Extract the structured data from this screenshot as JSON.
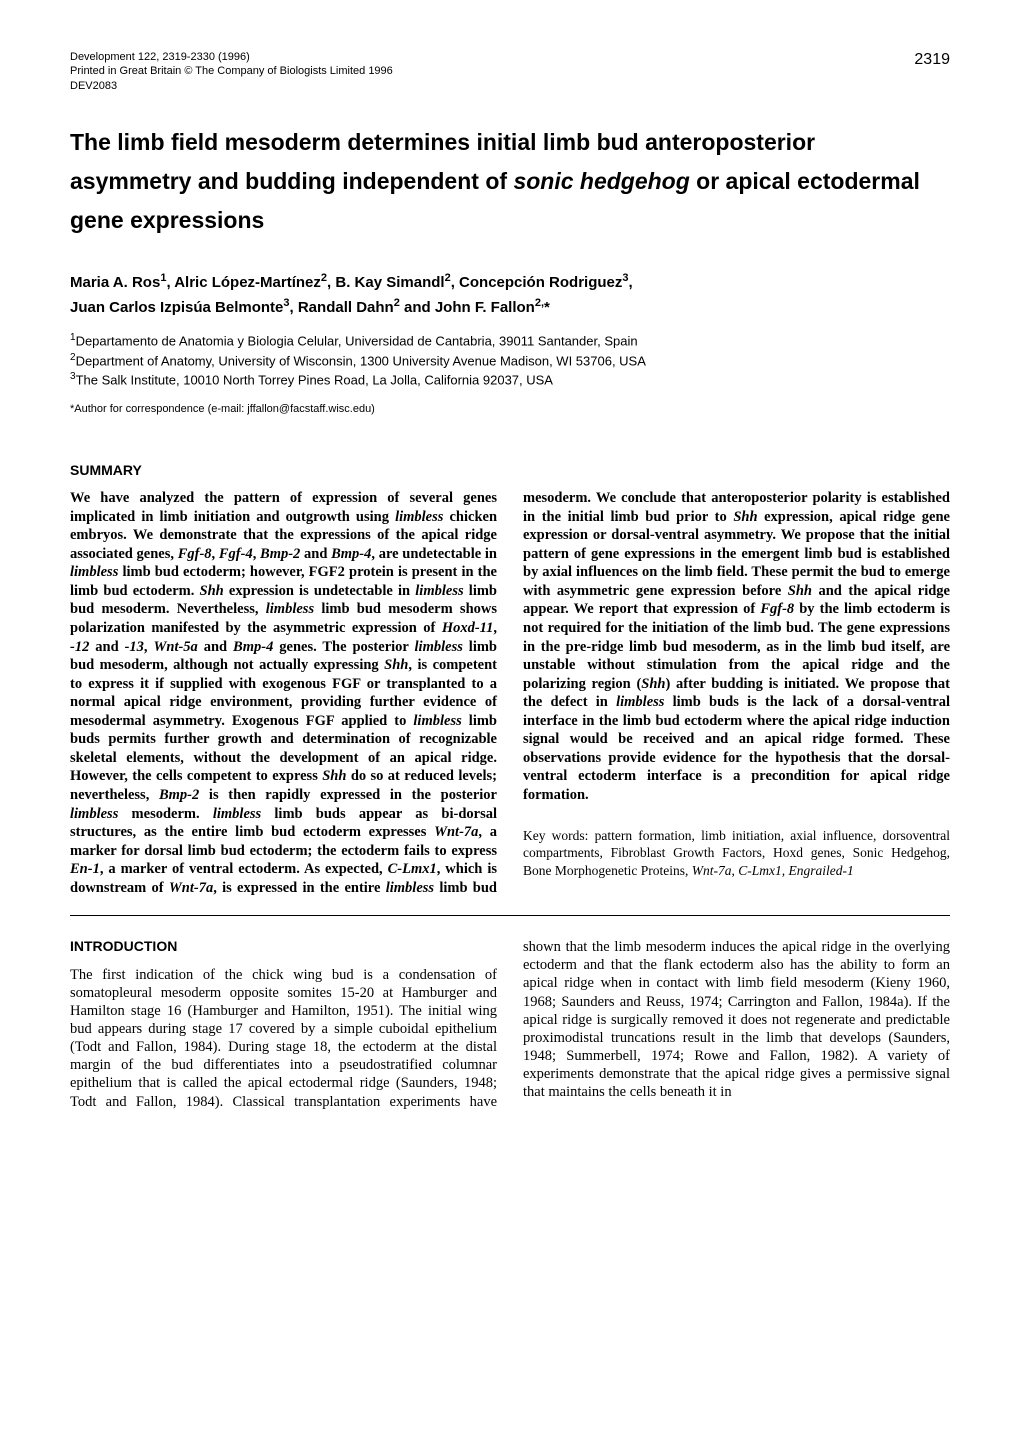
{
  "header": {
    "journal_line1": "Development 122, 2319-2330 (1996)",
    "journal_line2": "Printed in Great Britain © The Company of Biologists Limited 1996",
    "journal_line3": "DEV2083",
    "page_number": "2319"
  },
  "title": {
    "line1_part1": "The limb field mesoderm determines initial limb bud anteroposterior",
    "line2_part1": "asymmetry and budding independent of ",
    "line2_italic": "sonic hedgehog",
    "line2_part2": " or apical ectodermal",
    "line3": "gene expressions"
  },
  "authors": {
    "line1": "Maria A. Ros<sup>1</sup>, Alric López-Martínez<sup>2</sup>, B. Kay Simandl<sup>2</sup>, Concepción Rodriguez<sup>3</sup>,",
    "line2": "Juan Carlos Izpisúa Belmonte<sup>3</sup>, Randall Dahn<sup>2</sup> and John F. Fallon<sup>2,</sup>*"
  },
  "affiliations": {
    "a1": "<sup>1</sup>Departamento de Anatomia y Biologia Celular, Universidad de Cantabria, 39011 Santander, Spain",
    "a2": "<sup>2</sup>Department of Anatomy, University of Wisconsin, 1300 University Avenue Madison, WI 53706, USA",
    "a3": "<sup>3</sup>The Salk Institute, 10010 North Torrey Pines Road, La Jolla, California 92037, USA"
  },
  "correspondence": "*Author for correspondence (e-mail: jffallon@facstaff.wisc.edu)",
  "summary": {
    "header": "SUMMARY",
    "body_html": "We have analyzed the pattern of expression of several genes implicated in limb initiation and outgrowth using <span class=\"italic\">limbless</span> chicken embryos. We demonstrate that the expressions of the apical ridge associated genes, <span class=\"italic\">Fgf-8</span>, <span class=\"italic\">Fgf-4</span>, <span class=\"italic\">Bmp-2</span> and <span class=\"italic\">Bmp-4</span>, are undetectable in <span class=\"italic\">limbless</span> limb bud ectoderm; however, FGF2 protein is present in the limb bud ectoderm. <span class=\"italic\">Shh</span> expression is undetectable in <span class=\"italic\">limbless</span> limb bud mesoderm. Nevertheless, <span class=\"italic\">limbless</span> limb bud mesoderm shows polarization manifested by the asymmetric expression of <span class=\"italic\">Hoxd-11</span>, <span class=\"italic\">-12</span> and <span class=\"italic\">-13</span>, <span class=\"italic\">Wnt-5a</span> and <span class=\"italic\">Bmp-4</span> genes. The posterior <span class=\"italic\">limbless</span> limb bud mesoderm, although not actually expressing <span class=\"italic\">Shh</span>, is competent to express it if supplied with exogenous FGF or transplanted to a normal apical ridge environment, providing further evidence of mesodermal asymmetry. Exogenous FGF applied to <span class=\"italic\">limbless</span> limb buds permits further growth and determination of recognizable skeletal elements, without the development of an apical ridge. However, the cells competent to express <span class=\"italic\">Shh</span> do so at reduced levels; nevertheless, <span class=\"italic\">Bmp-2</span> is then rapidly expressed in the posterior <span class=\"italic\">limbless</span> mesoderm. <span class=\"italic\">limbless</span> limb buds appear as bi-dorsal structures, as the entire limb bud ectoderm expresses <span class=\"italic\">Wnt-7a</span>, a marker for dorsal limb bud ectoderm; the ectoderm fails to express <span class=\"italic\">En-1</span>, a marker of ventral ectoderm. As expected, <span class=\"italic\">C-Lmx1</span>, which is downstream of <span class=\"italic\">Wnt-7a</span>, is expressed in the entire <span class=\"italic\">limbless</span> limb bud mesoderm. We conclude that anteroposterior polarity is established in the initial limb bud prior to <span class=\"italic\">Shh</span> expression, apical ridge gene expression or dorsal-ventral asymmetry. We propose that the initial pattern of gene expressions in the emergent limb bud is established by axial influences on the limb field. These permit the bud to emerge with asymmetric gene expression before <span class=\"italic\">Shh</span> and the apical ridge appear. We report that expression of <span class=\"italic\">Fgf-8</span> by the limb ectoderm is not required for the initiation of the limb bud. The gene expressions in the pre-ridge limb bud mesoderm, as in the limb bud itself, are unstable without stimulation from the apical ridge and the polarizing region (<span class=\"italic\">Shh</span>) after budding is initiated. We propose that the defect in <span class=\"italic\">limbless</span> limb buds is the lack of a dorsal-ventral interface in the limb bud ectoderm where the apical ridge induction signal would be received and an apical ridge formed. These observations provide evidence for the hypothesis that the dorsal-ventral ectoderm interface is a precondition for apical ridge formation.",
    "keywords_html": "Key words: pattern formation, limb initiation, axial influence, dorsoventral compartments, Fibroblast Growth Factors, Hoxd genes, Sonic Hedgehog, Bone Morphogenetic Proteins, <span class=\"italic\">Wnt-7a</span>, <span class=\"italic\">C-Lmx1, Engrailed-1</span>"
  },
  "introduction": {
    "header": "INTRODUCTION",
    "body": "The first indication of the chick wing bud is a condensation of somatopleural mesoderm opposite somites 15-20 at Hamburger and Hamilton stage 16 (Hamburger and Hamilton, 1951). The initial wing bud appears during stage 17 covered by a simple cuboidal epithelium (Todt and Fallon, 1984). During stage 18, the ectoderm at the distal margin of the bud differentiates into a pseudostratified columnar epithelium that is called the apical ectodermal ridge (Saunders, 1948; Todt and Fallon, 1984). Classical transplantation experiments have shown that the limb mesoderm induces the apical ridge in the overlying ectoderm and that the flank ectoderm also has the ability to form an apical ridge when in contact with limb field mesoderm (Kieny 1960, 1968; Saunders and Reuss, 1974; Carrington and Fallon, 1984a). If the apical ridge is surgically removed it does not regenerate and predictable proximodistal truncations result in the limb that develops (Saunders, 1948; Summerbell, 1974; Rowe and Fallon, 1982). A variety of experiments demonstrate that the apical ridge gives a permissive signal that maintains the cells beneath it in"
  }
}
